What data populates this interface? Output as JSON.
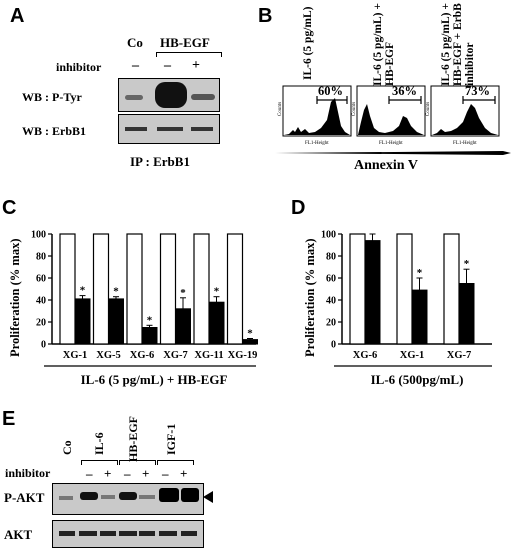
{
  "panel_a": {
    "letter": "A",
    "col_co": "Co",
    "col_hbegf": "HB-EGF",
    "inhibitor_label": "inhibitor",
    "signs": [
      "–",
      "–",
      "+"
    ],
    "wb1": "WB : P-Tyr",
    "wb2": "WB : ErbB1",
    "ip": "IP : ErbB1"
  },
  "panel_b": {
    "letter": "B",
    "conditions": [
      "IL-6 (5 pg/mL)",
      "IL-6 (5 pg/mL) + HB-EGF",
      "IL-6 (5 pg/mL) + HB-EGF + ErbB inhibitor"
    ],
    "percents": [
      "60%",
      "36%",
      "73%"
    ],
    "axis_label": "Annexin V",
    "hist_x": "FL1-Height",
    "hist_y": "Counts"
  },
  "panel_c": {
    "letter": "C",
    "ylabel": "Proliferation (% max)",
    "xlabel": "IL-6 (5 pg/mL) + HB-EGF",
    "star": "*"
  },
  "panel_d": {
    "letter": "D",
    "ylabel": "Proliferation (% max)",
    "xlabel": "IL-6 (500pg/mL)",
    "star": "*"
  },
  "panel_e": {
    "letter": "E",
    "col_labels": [
      "Co",
      "IL-6",
      "HB-EGF",
      "IGF-1"
    ],
    "inhibitor_label": "inhibitor",
    "signs": [
      "–",
      "+",
      "–",
      "+",
      "–",
      "+"
    ],
    "row1": "P-AKT",
    "row2": "AKT"
  },
  "chart_data": [
    {
      "type": "bar",
      "panel": "C",
      "categories": [
        "XG-1",
        "XG-5",
        "XG-6",
        "XG-7",
        "XG-11",
        "XG-19"
      ],
      "series": [
        {
          "values": [
            100,
            100,
            100,
            100,
            100,
            100
          ],
          "color": "#ffffff"
        },
        {
          "values": [
            41,
            41,
            15,
            32,
            38,
            4
          ],
          "errors": [
            3,
            2,
            2,
            10,
            5,
            1
          ],
          "significant": [
            true,
            true,
            true,
            true,
            true,
            true
          ],
          "color": "#000000"
        }
      ],
      "ylabel": "Proliferation (% max)",
      "xlabel": "IL-6 (5 pg/mL) + HB-EGF",
      "ylim": [
        0,
        100
      ],
      "yticks": [
        0,
        20,
        40,
        60,
        80,
        100
      ]
    },
    {
      "type": "bar",
      "panel": "D",
      "categories": [
        "XG-6",
        "XG-1",
        "XG-7"
      ],
      "series": [
        {
          "values": [
            100,
            100,
            100
          ],
          "color": "#ffffff"
        },
        {
          "values": [
            94,
            49,
            55
          ],
          "errors": [
            6,
            11,
            13
          ],
          "significant": [
            false,
            true,
            true
          ],
          "color": "#000000"
        }
      ],
      "ylabel": "Proliferation (% max)",
      "xlabel": "IL-6 (500pg/mL)",
      "ylim": [
        0,
        100
      ],
      "yticks": [
        0,
        20,
        40,
        60,
        80,
        100
      ]
    }
  ]
}
